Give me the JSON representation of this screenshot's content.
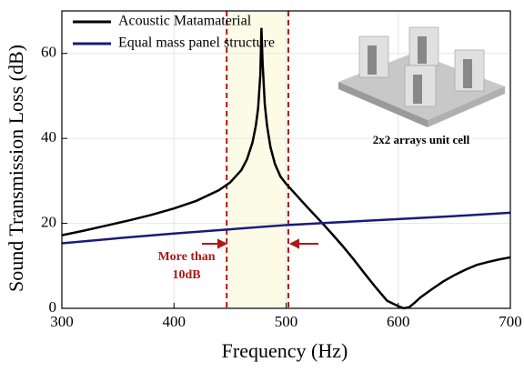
{
  "chart_data": {
    "type": "line",
    "xlabel": "Frequency (Hz)",
    "ylabel": "Sound Transmission Loss (dB)",
    "xlim": [
      300,
      700
    ],
    "ylim": [
      0,
      70
    ],
    "xticks": [
      300,
      400,
      500,
      600,
      700
    ],
    "yticks": [
      0,
      20,
      40,
      60
    ],
    "grid": true,
    "legend": "upper left",
    "series": [
      {
        "name": "Acoustic Matamaterial",
        "color": "#000000",
        "x": [
          300,
          320,
          340,
          360,
          380,
          400,
          420,
          440,
          450,
          460,
          465,
          470,
          473,
          475,
          477,
          478,
          479,
          481,
          483,
          486,
          490,
          495,
          500,
          510,
          520,
          530,
          540,
          550,
          560,
          570,
          580,
          590,
          600,
          605,
          610,
          615,
          620,
          630,
          640,
          650,
          660,
          670,
          680,
          690,
          700
        ],
        "values": [
          17.2,
          18.3,
          19.5,
          20.7,
          22.0,
          23.5,
          25.3,
          27.8,
          29.6,
          32.5,
          35,
          39,
          43,
          47,
          55,
          66,
          58,
          48,
          43,
          38,
          34,
          31,
          29.3,
          26.4,
          23.5,
          20.7,
          17.8,
          14.8,
          11.6,
          8.2,
          4.9,
          1.8,
          0.5,
          0,
          0.3,
          1.4,
          2.6,
          4.5,
          6.3,
          7.8,
          9.1,
          10.2,
          10.9,
          11.5,
          12.0
        ]
      },
      {
        "name": "Equal mass panel structure",
        "color": "#1a1a7a",
        "x": [
          300,
          350,
          400,
          450,
          500,
          550,
          600,
          650,
          700
        ],
        "values": [
          15.3,
          16.5,
          17.6,
          18.6,
          19.6,
          20.3,
          21.0,
          21.7,
          22.5
        ]
      }
    ],
    "reference_lines_x": [
      447,
      502
    ],
    "annotation": [
      "More than",
      "10dB"
    ],
    "inset_caption": "2x2 arrays unit cell"
  }
}
